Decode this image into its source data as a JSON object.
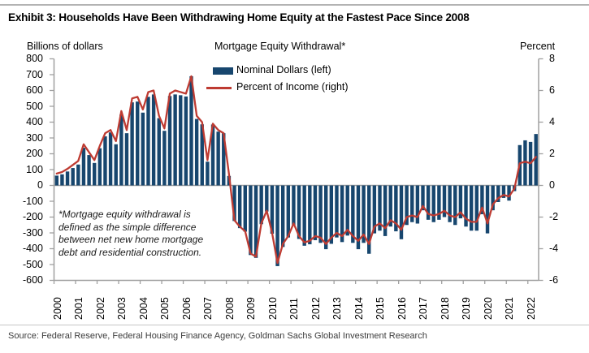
{
  "page": {
    "exhibit_title": "Exhibit 3: Households Have Been Withdrawing Home Equity at the Fastest Pace Since 2008",
    "source": "Source: Federal Reserve, Federal Housing Finance Agency, Goldman Sachs Global Investment Research"
  },
  "chart_data": {
    "type": "bar+line",
    "title": "Mortgage Equity Withdrawal*",
    "left_axis_label": "Billions of dollars",
    "right_axis_label": "Percent",
    "frequency": "quarterly",
    "x_range_note": "2000Q1 through 2022Q2",
    "years": [
      "2000",
      "2001",
      "2002",
      "2003",
      "2004",
      "2005",
      "2006",
      "2007",
      "2008",
      "2009",
      "2010",
      "2011",
      "2012",
      "2013",
      "2014",
      "2015",
      "2016",
      "2017",
      "2018",
      "2019",
      "2020",
      "2021",
      "2022"
    ],
    "left_ticks": [
      800,
      700,
      600,
      500,
      400,
      300,
      200,
      100,
      0,
      -100,
      -200,
      -300,
      -400,
      -500,
      -600
    ],
    "right_ticks": [
      8,
      6,
      4,
      2,
      0,
      -2,
      -4,
      -6
    ],
    "left_range": [
      -600,
      800
    ],
    "right_range": [
      -6,
      8
    ],
    "grid": false,
    "legend_position": "top-center-inside",
    "series": [
      {
        "name": "Nominal Dollars (left)",
        "type": "bar",
        "axis": "left",
        "color": "#17466e",
        "values": [
          62,
          70,
          88,
          110,
          132,
          238,
          192,
          142,
          235,
          310,
          335,
          260,
          448,
          330,
          525,
          530,
          460,
          560,
          575,
          425,
          345,
          565,
          575,
          570,
          562,
          690,
          420,
          386,
          150,
          385,
          340,
          330,
          60,
          -225,
          -270,
          -292,
          -440,
          -458,
          -245,
          -165,
          -305,
          -510,
          -389,
          -329,
          -251,
          -338,
          -381,
          -372,
          -346,
          -363,
          -403,
          -369,
          -329,
          -358,
          -317,
          -363,
          -403,
          -363,
          -432,
          -303,
          -286,
          -320,
          -260,
          -290,
          -340,
          -250,
          -232,
          -241,
          -157,
          -217,
          -232,
          -217,
          -200,
          -232,
          -250,
          -208,
          -260,
          -286,
          -286,
          -182,
          -303,
          -157,
          -105,
          -79,
          -96,
          -36,
          255,
          285,
          275,
          325
        ]
      },
      {
        "name": "Percent of Income (right)",
        "type": "line",
        "axis": "right",
        "color": "#be3b32",
        "values": [
          0.75,
          0.85,
          1.05,
          1.3,
          1.55,
          2.6,
          2.1,
          1.6,
          2.5,
          3.3,
          3.5,
          2.8,
          4.7,
          3.5,
          5.5,
          5.6,
          4.8,
          5.9,
          6.0,
          4.4,
          3.6,
          5.8,
          6.0,
          5.9,
          5.8,
          6.9,
          4.4,
          4.0,
          1.6,
          3.9,
          3.5,
          3.3,
          0.7,
          -2.2,
          -2.6,
          -2.9,
          -4.3,
          -4.5,
          -2.4,
          -1.6,
          -3.0,
          -4.9,
          -3.7,
          -3.2,
          -2.4,
          -3.2,
          -3.6,
          -3.5,
          -3.2,
          -3.3,
          -3.7,
          -3.3,
          -3.0,
          -3.2,
          -2.8,
          -3.2,
          -3.5,
          -3.1,
          -3.7,
          -2.6,
          -2.4,
          -2.7,
          -2.2,
          -2.4,
          -2.8,
          -2.0,
          -1.9,
          -2.0,
          -1.3,
          -1.8,
          -1.9,
          -1.8,
          -1.6,
          -1.9,
          -2.0,
          -1.7,
          -2.1,
          -2.3,
          -2.3,
          -1.4,
          -2.4,
          -1.2,
          -0.8,
          -0.6,
          -0.7,
          -0.2,
          1.4,
          1.5,
          1.4,
          1.8
        ]
      }
    ],
    "annotation_lines": [
      "*Mortgage equity withdrawal is",
      "defined as the simple difference",
      "between net new home mortgage",
      "debt and residential construction."
    ],
    "axis_color": "#a0a0a0"
  }
}
